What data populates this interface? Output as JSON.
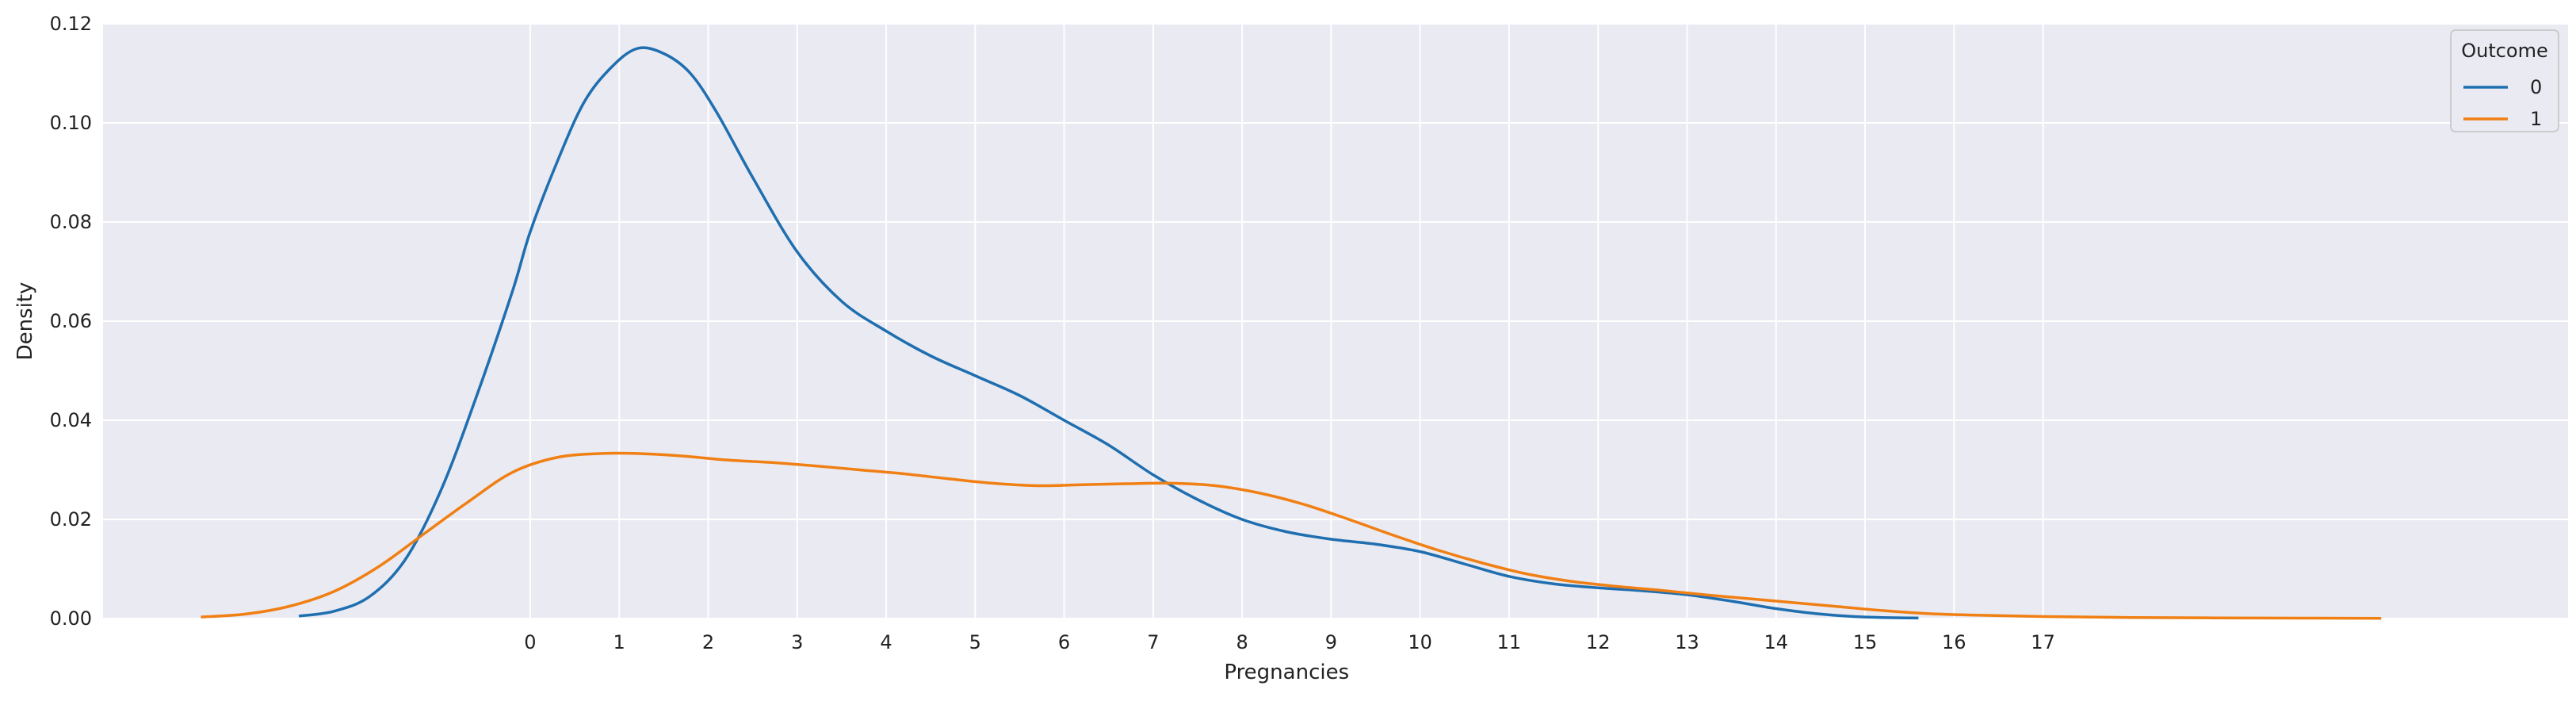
{
  "chart_data": {
    "type": "line",
    "title": "",
    "xlabel": "Pregnancies",
    "ylabel": "Density",
    "xlim": [
      -4.8,
      22.9
    ],
    "ylim": [
      0,
      0.12
    ],
    "x_ticks": [
      "0",
      "1",
      "2",
      "3",
      "4",
      "5",
      "6",
      "7",
      "8",
      "9",
      "10",
      "11",
      "12",
      "13",
      "14",
      "15",
      "16",
      "17"
    ],
    "y_ticks": [
      "0.00",
      "0.02",
      "0.04",
      "0.06",
      "0.08",
      "0.10",
      "0.12"
    ],
    "grid": true,
    "background": "#eaeaf2",
    "legend": {
      "title": "Outcome",
      "placement": "top-right"
    },
    "series": [
      {
        "name": "0",
        "color": "#1f6fb0",
        "points": [
          [
            -2.6,
            0.0005
          ],
          [
            -2.2,
            0.0015
          ],
          [
            -1.8,
            0.0045
          ],
          [
            -1.4,
            0.012
          ],
          [
            -1.0,
            0.026
          ],
          [
            -0.6,
            0.045
          ],
          [
            -0.2,
            0.066
          ],
          [
            0.0,
            0.078
          ],
          [
            0.3,
            0.092
          ],
          [
            0.6,
            0.104
          ],
          [
            0.9,
            0.111
          ],
          [
            1.2,
            0.115
          ],
          [
            1.5,
            0.114
          ],
          [
            1.8,
            0.11
          ],
          [
            2.1,
            0.102
          ],
          [
            2.5,
            0.089
          ],
          [
            3.0,
            0.074
          ],
          [
            3.5,
            0.064
          ],
          [
            4.0,
            0.058
          ],
          [
            4.5,
            0.053
          ],
          [
            5.0,
            0.049
          ],
          [
            5.5,
            0.045
          ],
          [
            6.0,
            0.04
          ],
          [
            6.5,
            0.035
          ],
          [
            7.0,
            0.029
          ],
          [
            7.5,
            0.024
          ],
          [
            8.0,
            0.02
          ],
          [
            8.5,
            0.0175
          ],
          [
            9.0,
            0.016
          ],
          [
            9.5,
            0.015
          ],
          [
            10.0,
            0.0135
          ],
          [
            10.5,
            0.011
          ],
          [
            11.0,
            0.0085
          ],
          [
            11.5,
            0.007
          ],
          [
            12.0,
            0.0062
          ],
          [
            12.5,
            0.0056
          ],
          [
            13.0,
            0.0048
          ],
          [
            13.5,
            0.0035
          ],
          [
            14.0,
            0.002
          ],
          [
            14.5,
            0.0009
          ],
          [
            15.0,
            0.0003
          ],
          [
            15.6,
            0.0001
          ]
        ]
      },
      {
        "name": "1",
        "color": "#f07f14",
        "points": [
          [
            -3.7,
            0.0003
          ],
          [
            -3.2,
            0.0009
          ],
          [
            -2.7,
            0.0025
          ],
          [
            -2.2,
            0.0055
          ],
          [
            -1.7,
            0.0105
          ],
          [
            -1.2,
            0.017
          ],
          [
            -0.7,
            0.0235
          ],
          [
            -0.2,
            0.0295
          ],
          [
            0.3,
            0.0325
          ],
          [
            0.8,
            0.0333
          ],
          [
            1.2,
            0.0333
          ],
          [
            1.7,
            0.0328
          ],
          [
            2.2,
            0.032
          ],
          [
            2.7,
            0.0315
          ],
          [
            3.2,
            0.0308
          ],
          [
            3.7,
            0.03
          ],
          [
            4.2,
            0.0292
          ],
          [
            4.7,
            0.0282
          ],
          [
            5.2,
            0.0273
          ],
          [
            5.7,
            0.0268
          ],
          [
            6.2,
            0.027
          ],
          [
            6.7,
            0.0272
          ],
          [
            7.2,
            0.0273
          ],
          [
            7.7,
            0.0268
          ],
          [
            8.2,
            0.0253
          ],
          [
            8.7,
            0.023
          ],
          [
            9.2,
            0.02
          ],
          [
            9.7,
            0.0168
          ],
          [
            10.2,
            0.0138
          ],
          [
            10.7,
            0.0112
          ],
          [
            11.2,
            0.009
          ],
          [
            11.7,
            0.0075
          ],
          [
            12.2,
            0.0065
          ],
          [
            12.7,
            0.0057
          ],
          [
            13.2,
            0.0048
          ],
          [
            13.7,
            0.004
          ],
          [
            14.2,
            0.0032
          ],
          [
            14.7,
            0.0024
          ],
          [
            15.2,
            0.0016
          ],
          [
            15.7,
            0.001
          ],
          [
            16.2,
            0.0007
          ],
          [
            17.0,
            0.0004
          ],
          [
            18.0,
            0.0002
          ],
          [
            19.5,
            0.0001
          ],
          [
            20.8,
            5e-05
          ]
        ]
      }
    ]
  }
}
